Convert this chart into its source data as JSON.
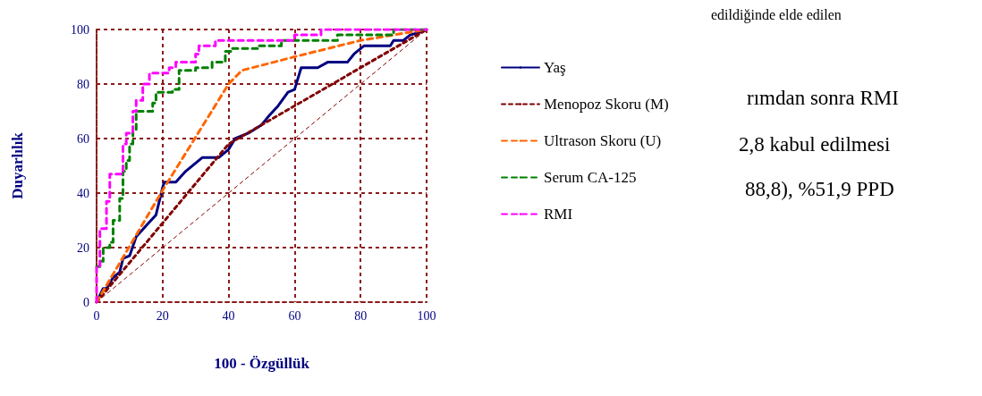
{
  "chart_data": {
    "type": "line",
    "xlabel": "100 - Özgüllük",
    "ylabel": "Duyarlılık",
    "xlim": [
      0,
      100
    ],
    "ylim": [
      0,
      100
    ],
    "xticks": [
      0,
      20,
      40,
      60,
      80,
      100
    ],
    "yticks": [
      0,
      20,
      40,
      60,
      80,
      100
    ],
    "grid": true,
    "legend": "right",
    "marker": "none",
    "series": [
      {
        "name": "Yaş",
        "color": "#000080",
        "line_style": "solid",
        "x": [
          0,
          2,
          3,
          5,
          7,
          8,
          10,
          12,
          15,
          18,
          20,
          20.5,
          24,
          27,
          32,
          37,
          40,
          42,
          46,
          50,
          52,
          55,
          58,
          60,
          61,
          62,
          67,
          70,
          76,
          78,
          80,
          81,
          89,
          90,
          93,
          95,
          98,
          100
        ],
        "values": [
          0,
          5,
          5,
          9,
          11,
          16,
          17,
          24,
          28,
          32,
          42,
          44,
          44,
          48,
          53,
          53,
          56,
          60,
          62,
          65,
          68,
          72,
          77,
          78,
          82,
          86,
          86,
          88,
          88,
          91,
          93,
          94,
          94,
          96,
          96,
          98,
          99,
          100
        ]
      },
      {
        "name": "Menopoz Skoru (M)",
        "color": "#800000",
        "line_style": "dotted",
        "x": [
          0,
          40,
          100
        ],
        "values": [
          0,
          58,
          100
        ]
      },
      {
        "name": "Ultrason Skoru (U)",
        "color": "#ff6600",
        "line_style": "dashed",
        "x": [
          0,
          20,
          40,
          44,
          60,
          80,
          100
        ],
        "values": [
          0,
          41,
          80,
          85,
          90,
          96,
          100
        ]
      },
      {
        "name": "Serum CA-125",
        "type": "step",
        "color": "#008000",
        "line_style": "dashed",
        "x": [
          0,
          1,
          2,
          4,
          5,
          7,
          8,
          9,
          10,
          11,
          12,
          17,
          18,
          23,
          25,
          30,
          35,
          39,
          41,
          49,
          56,
          67,
          73,
          88,
          90,
          100
        ],
        "values": [
          13,
          15,
          20,
          22,
          30,
          38,
          48,
          52,
          58,
          63,
          70,
          73,
          77,
          78,
          85,
          86,
          88,
          92,
          93,
          94,
          96,
          96,
          98,
          98,
          100,
          100
        ]
      },
      {
        "name": "RMI",
        "type": "step",
        "color": "#ff00ff",
        "line_style": "dashed",
        "x": [
          0,
          0,
          1,
          3,
          4,
          8,
          9,
          11,
          12,
          14,
          16,
          22,
          24,
          30,
          31,
          36,
          60,
          68,
          100
        ],
        "values": [
          0,
          13,
          27,
          37,
          47,
          58,
          62,
          70,
          74,
          80,
          84,
          86,
          88,
          91,
          94,
          96,
          98,
          100,
          100
        ]
      },
      {
        "color": "#800000",
        "line_style": "dotted",
        "x": [
          0,
          100
        ],
        "values": [
          0,
          100
        ]
      }
    ],
    "annotations": [
      "edildiğinde elde edilen",
      "rımdan sonra RMI",
      "2,8 kabul edilmesi",
      "88,8), %51,9 PPD"
    ]
  }
}
